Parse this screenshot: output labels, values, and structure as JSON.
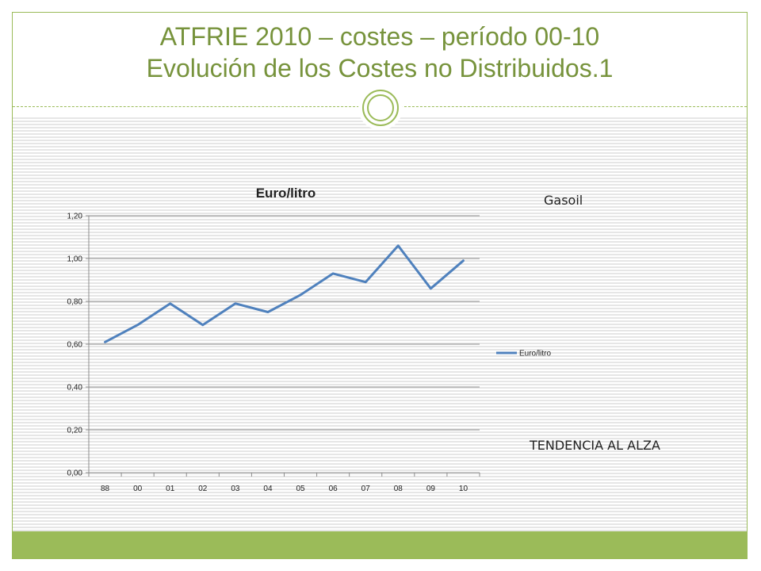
{
  "slide": {
    "title_line1": "ATFRIE 2010 – costes – período 00-10",
    "title_line2": "Evolución de los Costes no Distribuidos.1",
    "label_gasoil": "Gasoil",
    "label_trend": "TENDENCIA AL ALZA"
  },
  "colors": {
    "accent": "#9bbb59",
    "title": "#77933c",
    "series": "#4f81bd"
  },
  "chart_data": {
    "type": "line",
    "title": "Euro/litro",
    "categories": [
      "88",
      "00",
      "01",
      "02",
      "03",
      "04",
      "05",
      "06",
      "07",
      "08",
      "09",
      "10"
    ],
    "series": [
      {
        "name": "Euro/litro",
        "values": [
          0.61,
          0.69,
          0.79,
          0.69,
          0.79,
          0.75,
          0.83,
          0.93,
          0.89,
          1.06,
          0.86,
          0.99
        ]
      }
    ],
    "yticks": [
      "0,00",
      "0,20",
      "0,40",
      "0,60",
      "0,80",
      "1,00",
      "1,20"
    ],
    "ylim": [
      0,
      1.2
    ],
    "grid": true,
    "legend_position": "right"
  }
}
